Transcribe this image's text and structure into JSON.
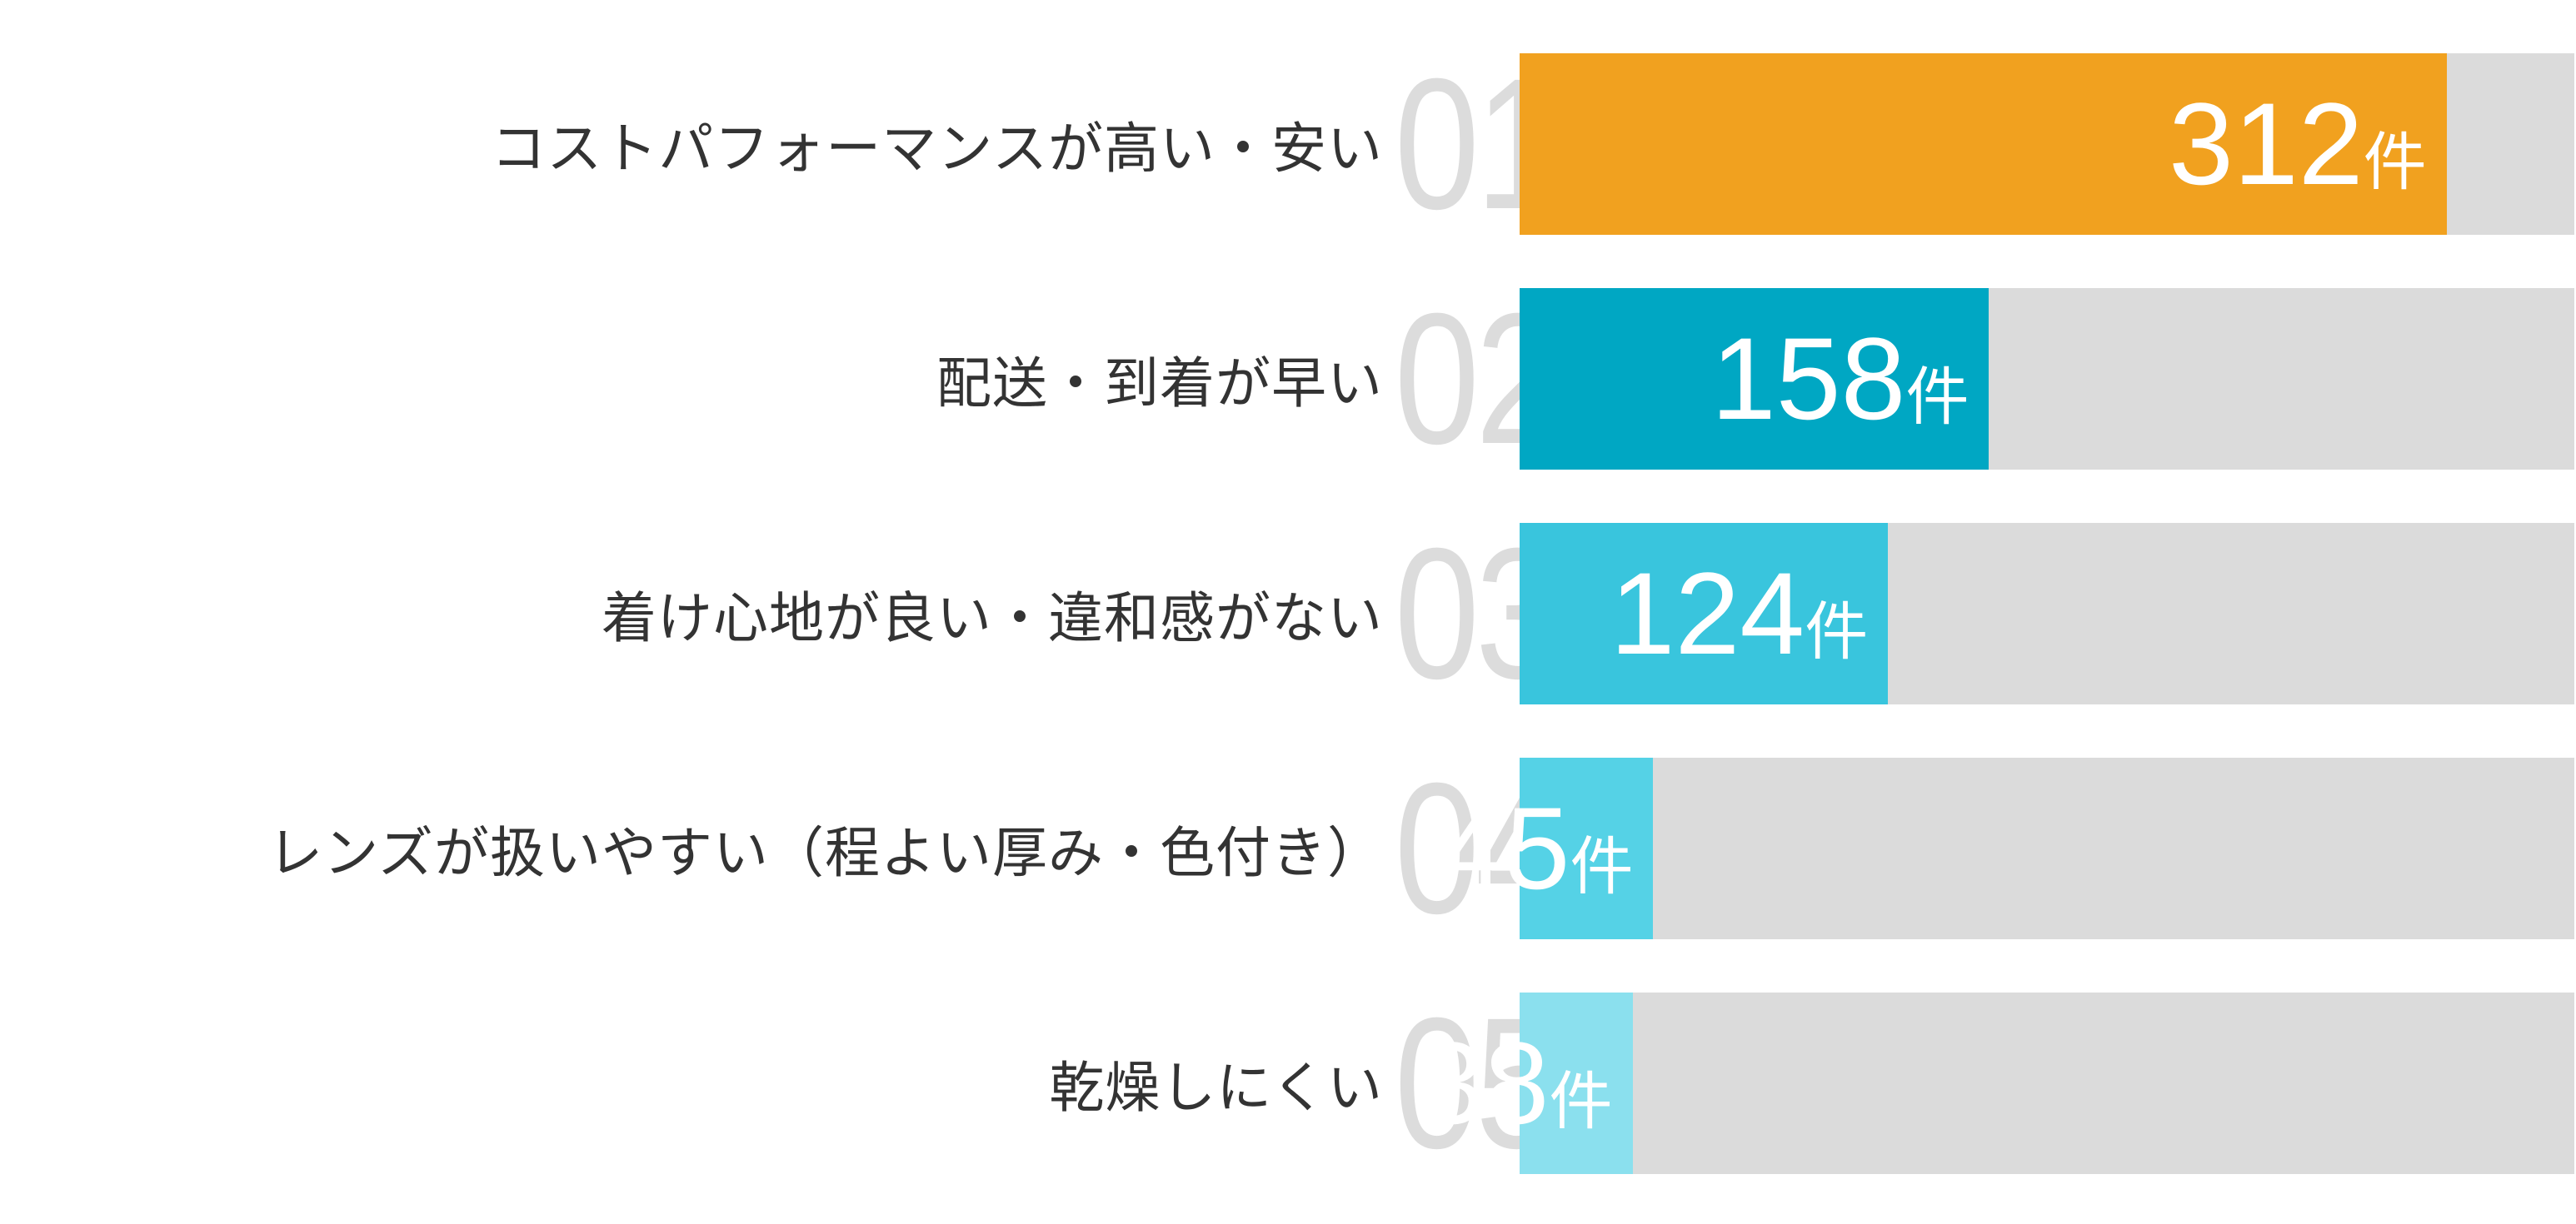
{
  "chart_data": {
    "type": "bar",
    "orientation": "horizontal",
    "title": "",
    "unit_label": "件",
    "axis_max": 355,
    "categories": [
      "コストパフォーマンスが高い・安い",
      "配送・到着が早い",
      "着け心地が良い・違和感がない",
      "レンズが扱いやすい（程よい厚み・色付き）",
      "乾燥しにくい"
    ],
    "values": [
      312,
      158,
      124,
      45,
      38
    ],
    "ranks": [
      "01",
      "02",
      "03",
      "04",
      "05"
    ],
    "bar_colors": [
      "#F1A11F",
      "#00A7C3",
      "#39C5DD",
      "#55D2E6",
      "#8BE0EE"
    ],
    "track_color": "#DBDBDB",
    "rank_color": "#DCDCDC",
    "value_text_color": "#FFFFFF",
    "label_color": "#333333",
    "legend": "none",
    "grid": "off"
  }
}
